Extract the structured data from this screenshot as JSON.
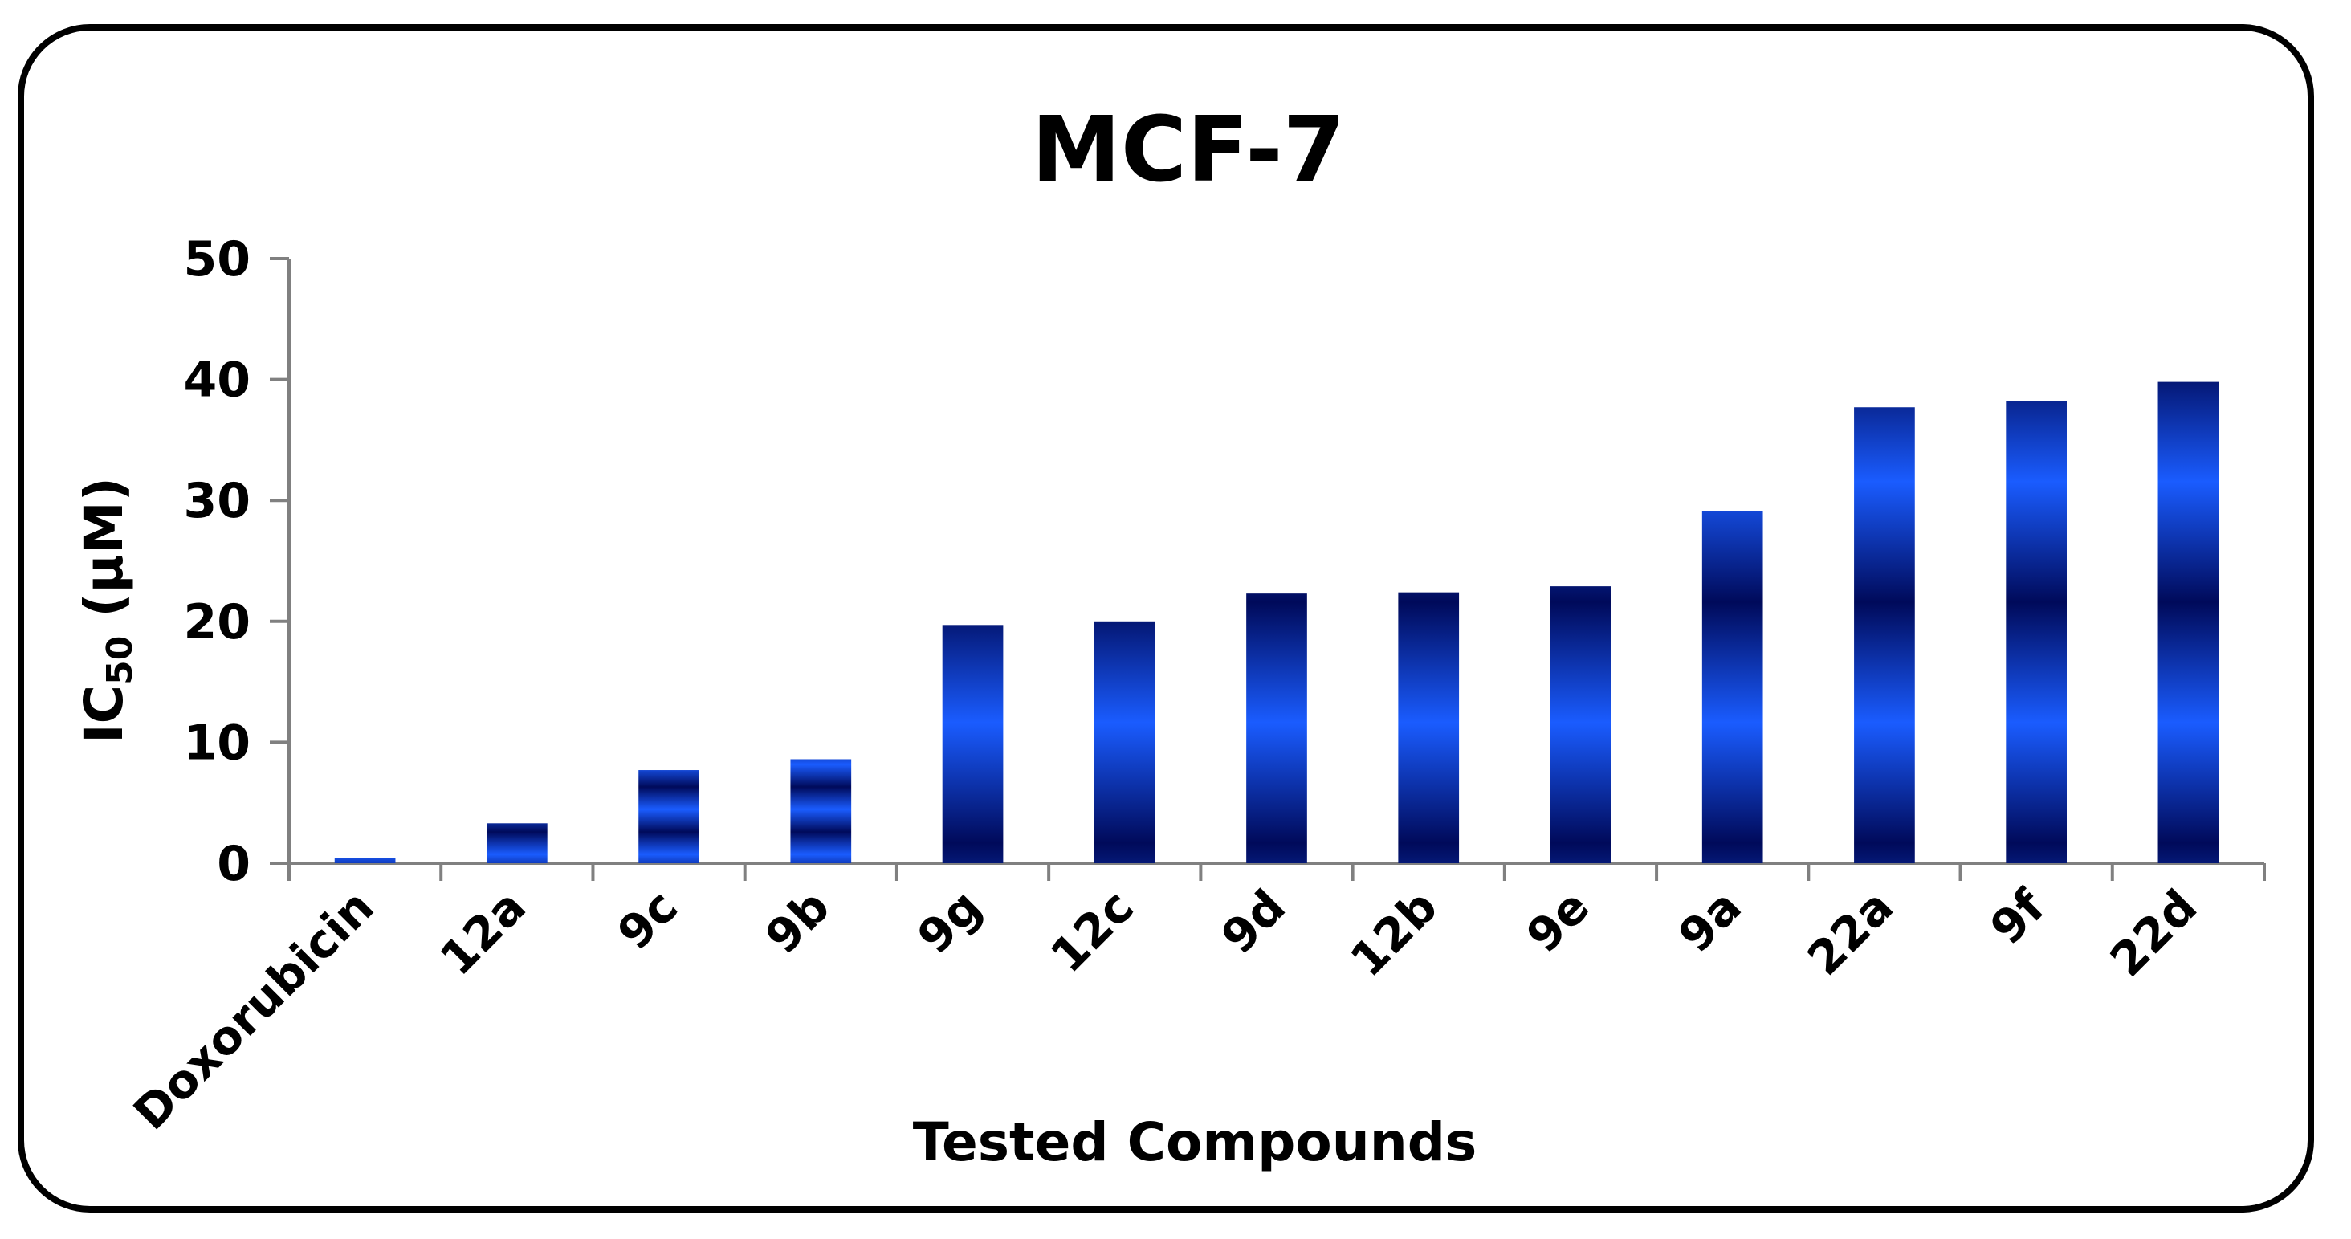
{
  "chart_data": {
    "type": "bar",
    "title": "MCF-7",
    "xlabel": "Tested Compounds",
    "ylabel": {
      "main": "IC",
      "subscript": "50",
      "unit": " (μM)"
    },
    "ylim": [
      0,
      50
    ],
    "yticks": [
      0,
      10,
      20,
      30,
      40,
      50
    ],
    "categories": [
      "Doxorubicin",
      "12a",
      "9c",
      "9b",
      "9g",
      "12c",
      "9d",
      "12b",
      "9e",
      "9a",
      "22a",
      "9f",
      "22d"
    ],
    "values": [
      0.4,
      3.3,
      7.7,
      8.6,
      19.7,
      20.0,
      22.3,
      22.4,
      22.9,
      29.1,
      37.7,
      38.2,
      39.8
    ],
    "grid": false,
    "legend": "none",
    "colors": {
      "bar_light": "#1a5cff",
      "bar_dark": "#000a5a",
      "axis": "#808080",
      "text": "#000000"
    }
  }
}
